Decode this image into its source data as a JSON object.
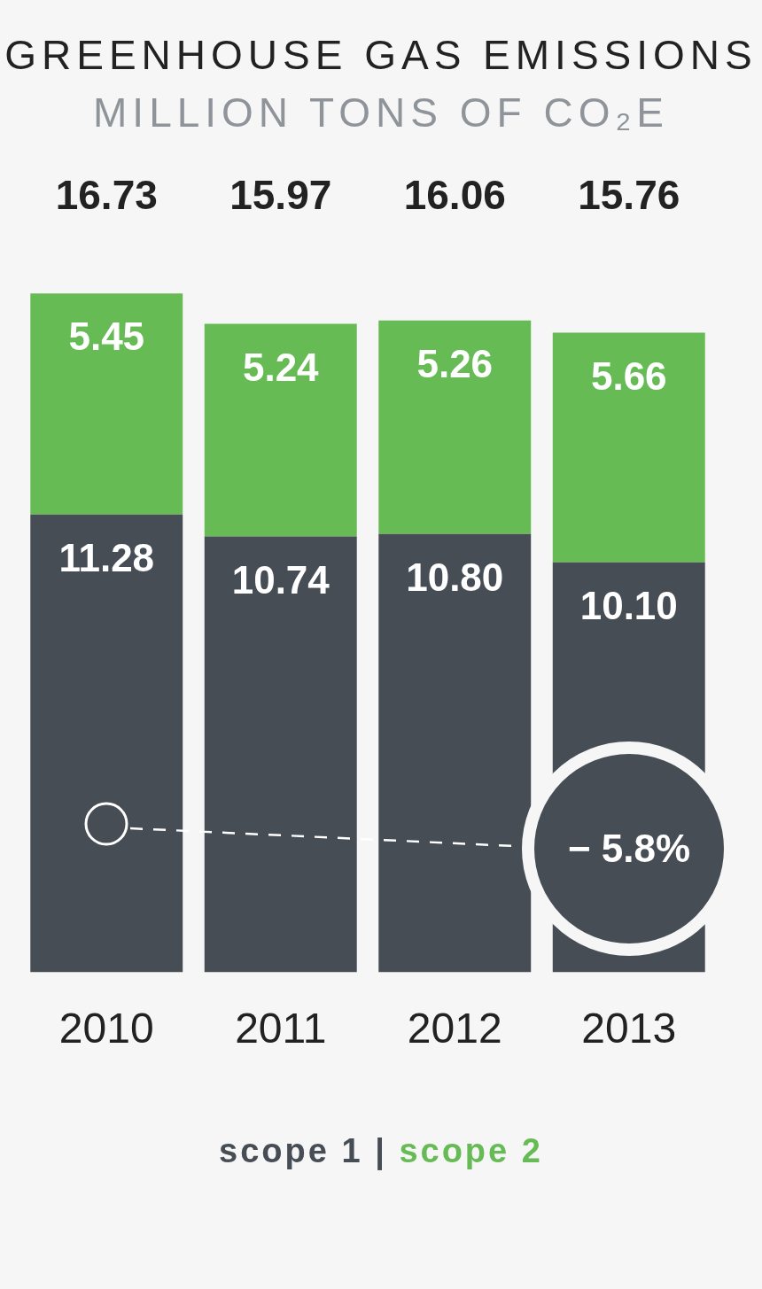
{
  "chart_data": {
    "type": "bar",
    "title": "GREENHOUSE GAS EMISSIONS",
    "subtitle": "MILLION TONS OF CO₂E",
    "categories": [
      "2010",
      "2011",
      "2012",
      "2013"
    ],
    "stacked": true,
    "data_labels": true,
    "legend": "bottom",
    "totals": [
      "16.73",
      "15.97",
      "16.06",
      "15.76"
    ],
    "annotations": [
      "− 5.8%",
      "|"
    ],
    "series": [
      {
        "name": "scope 1",
        "color": "#474d55",
        "values": [
          11.28,
          10.74,
          10.8,
          10.1
        ],
        "value_labels": [
          "11.28",
          "10.74",
          "10.80",
          "10.10"
        ]
      },
      {
        "name": "scope 2",
        "color": "#66bb55",
        "values": [
          5.45,
          5.24,
          5.26,
          5.66
        ],
        "value_labels": [
          "5.45",
          "5.24",
          "5.26",
          "5.66"
        ]
      }
    ]
  }
}
